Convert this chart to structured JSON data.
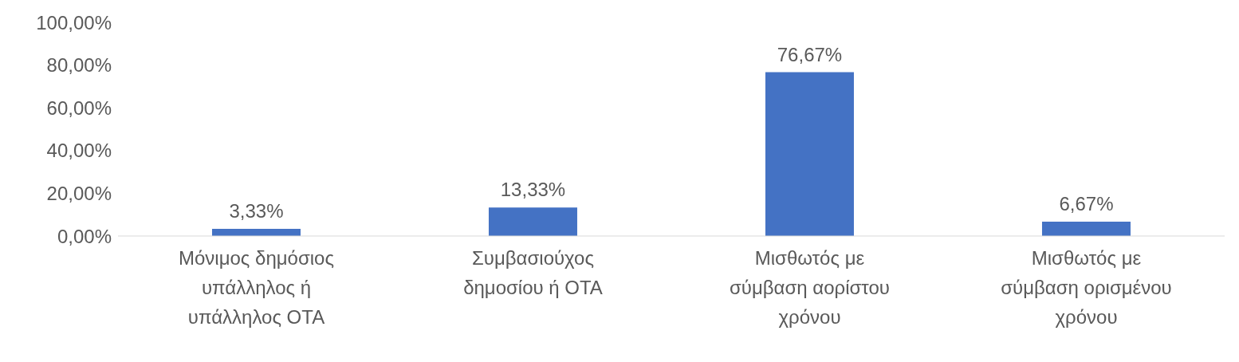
{
  "chart_data": {
    "type": "bar",
    "categories": [
      "Μόνιμος δημόσιος υπάλληλος ή υπάλληλος ΟΤΑ",
      "Συμβασιούχος δημοσίου ή ΟΤΑ",
      "Μισθωτός με σύμβαση αορίστου χρόνου",
      "Μισθωτός με σύμβαση ορισμένου χρόνου"
    ],
    "values": [
      3.33,
      13.33,
      76.67,
      6.67
    ],
    "value_labels": [
      "3,33%",
      "13,33%",
      "76,67%",
      "6,67%"
    ],
    "color": "#4472c4",
    "ylim": [
      0,
      100
    ],
    "yticks": [
      {
        "value": 0,
        "label": "0,00%"
      },
      {
        "value": 20,
        "label": "20,00%"
      },
      {
        "value": 40,
        "label": "40,00%"
      },
      {
        "value": 60,
        "label": "60,00%"
      },
      {
        "value": 80,
        "label": "80,00%"
      },
      {
        "value": 100,
        "label": "100,00%"
      }
    ],
    "grid": false,
    "legend": false
  }
}
